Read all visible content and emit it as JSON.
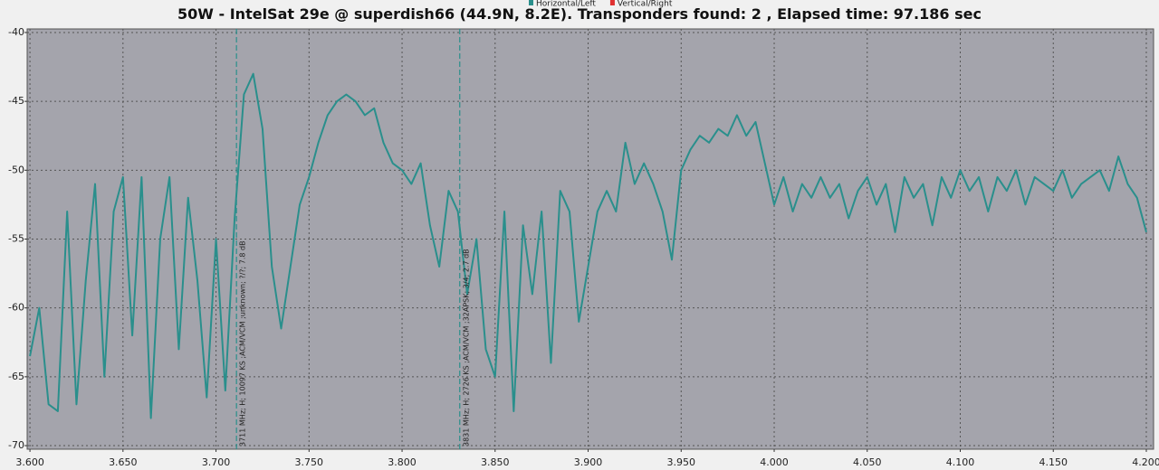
{
  "chart_data": {
    "type": "line",
    "title": "50W - IntelSat 29e @ superdish66 (44.9N, 8.2E). Transponders found: 2 , Elapsed time: 97.186 sec",
    "x": [
      3.6,
      3.605,
      3.61,
      3.615,
      3.62,
      3.625,
      3.63,
      3.635,
      3.64,
      3.645,
      3.65,
      3.655,
      3.66,
      3.665,
      3.67,
      3.675,
      3.68,
      3.685,
      3.69,
      3.695,
      3.7,
      3.705,
      3.71,
      3.715,
      3.72,
      3.725,
      3.73,
      3.735,
      3.74,
      3.745,
      3.75,
      3.755,
      3.76,
      3.765,
      3.77,
      3.775,
      3.78,
      3.785,
      3.79,
      3.795,
      3.8,
      3.805,
      3.81,
      3.815,
      3.82,
      3.825,
      3.83,
      3.835,
      3.84,
      3.845,
      3.85,
      3.855,
      3.86,
      3.865,
      3.87,
      3.875,
      3.88,
      3.885,
      3.89,
      3.895,
      3.9,
      3.905,
      3.91,
      3.915,
      3.92,
      3.925,
      3.93,
      3.935,
      3.94,
      3.945,
      3.95,
      3.955,
      3.96,
      3.965,
      3.97,
      3.975,
      3.98,
      3.985,
      3.99,
      3.995,
      4.0,
      4.005,
      4.01,
      4.015,
      4.02,
      4.025,
      4.03,
      4.035,
      4.04,
      4.045,
      4.05,
      4.055,
      4.06,
      4.065,
      4.07,
      4.075,
      4.08,
      4.085,
      4.09,
      4.095,
      4.1,
      4.105,
      4.11,
      4.115,
      4.12,
      4.125,
      4.13,
      4.135,
      4.14,
      4.145,
      4.15,
      4.155,
      4.16,
      4.165,
      4.17,
      4.175,
      4.18,
      4.185,
      4.19,
      4.195,
      4.2
    ],
    "series": [
      {
        "name": "Horizontal/Left",
        "color": "#2a8f8c",
        "values": [
          -63.5,
          -60,
          -67,
          -67.5,
          -53,
          -67,
          -58,
          -51,
          -65,
          -53,
          -50.5,
          -62,
          -50.5,
          -68,
          -55,
          -50.5,
          -63,
          -52,
          -58,
          -66.5,
          -55,
          -66,
          -53.5,
          -44.5,
          -43,
          -47,
          -57,
          -61.5,
          -57,
          -52.5,
          -50.5,
          -48,
          -46,
          -45,
          -44.5,
          -45,
          -46,
          -45.5,
          -48,
          -49.5,
          -50,
          -51,
          -49.5,
          -54,
          -57,
          -51.5,
          -53,
          -59,
          -55,
          -63,
          -65,
          -53,
          -67.5,
          -54,
          -59,
          -53,
          -64,
          -51.5,
          -53,
          -61,
          -57,
          -53,
          -51.5,
          -53,
          -48,
          -51,
          -49.5,
          -51,
          -53,
          -56.5,
          -50,
          -48.5,
          -47.5,
          -48,
          -47,
          -47.5,
          -46,
          -47.5,
          -46.5,
          -49.5,
          -52.5,
          -50.5,
          -53,
          -51,
          -52,
          -50.5,
          -52,
          -51,
          -53.5,
          -51.5,
          -50.5,
          -52.5,
          -51,
          -54.5,
          -50.5,
          -52,
          -51,
          -54,
          -50.5,
          -52,
          -50,
          -51.5,
          -50.5,
          -53,
          -50.5,
          -51.5,
          -50,
          -52.5,
          -50.5,
          -51,
          -51.5,
          -50,
          -52,
          -51,
          -50.5,
          -50,
          -51.5,
          -49,
          -51,
          -52,
          -54.5
        ]
      },
      {
        "name": "Vertical/Right",
        "color": "#e03030",
        "values": [
          null,
          null,
          null,
          null,
          null,
          null,
          null,
          null,
          null,
          null,
          null,
          null,
          null,
          null,
          null,
          null,
          null,
          null,
          null,
          null,
          null,
          null,
          null,
          null,
          null,
          null,
          null,
          null,
          null,
          null,
          null,
          null,
          null,
          null,
          null,
          null,
          null,
          null,
          null,
          null,
          null,
          null,
          null,
          null,
          null,
          null,
          null,
          null,
          null,
          null,
          null,
          null,
          null,
          null,
          null,
          null,
          null,
          null,
          null,
          null,
          null,
          null,
          null,
          null,
          null,
          null,
          null,
          null,
          null,
          null,
          null,
          null,
          null,
          null,
          null,
          null,
          null,
          null,
          null,
          null,
          null,
          null,
          null,
          null,
          null,
          null,
          null,
          null,
          null,
          null,
          null,
          null,
          null,
          null,
          null,
          null,
          null,
          null,
          null,
          null,
          null,
          null,
          null,
          null,
          null,
          null,
          null,
          null,
          null,
          null,
          null,
          null,
          null,
          null,
          null,
          null,
          null,
          null,
          null,
          null,
          null
        ]
      }
    ],
    "xlim": [
      3.5985,
      4.2039
    ],
    "ylim": [
      -70.26,
      -39.74
    ],
    "xticks": [
      {
        "value": 3.6,
        "label": "3.600"
      },
      {
        "value": 3.65,
        "label": "3.650"
      },
      {
        "value": 3.7,
        "label": "3.700"
      },
      {
        "value": 3.75,
        "label": "3.750"
      },
      {
        "value": 3.8,
        "label": "3.800"
      },
      {
        "value": 3.85,
        "label": "3.850"
      },
      {
        "value": 3.9,
        "label": "3.900"
      },
      {
        "value": 3.95,
        "label": "3.950"
      },
      {
        "value": 4.0,
        "label": "4.000"
      },
      {
        "value": 4.05,
        "label": "4.050"
      },
      {
        "value": 4.1,
        "label": "4.100"
      },
      {
        "value": 4.15,
        "label": "4.150"
      },
      {
        "value": 4.2,
        "label": "4.200"
      }
    ],
    "yticks": [
      -40,
      -45,
      -50,
      -55,
      -60,
      -65,
      -70
    ],
    "grid": true,
    "annotations": [
      {
        "x": 3.711,
        "text": "3711 MHz; H; 10097 KS ;ACM/VCM ;unknown; ?/?; 7.8 dB"
      },
      {
        "x": 3.831,
        "text": "3831 MHz; H; 2726 KS ;ACM/VCM ;32APSK; 3/4; 2.7 dB"
      }
    ]
  }
}
